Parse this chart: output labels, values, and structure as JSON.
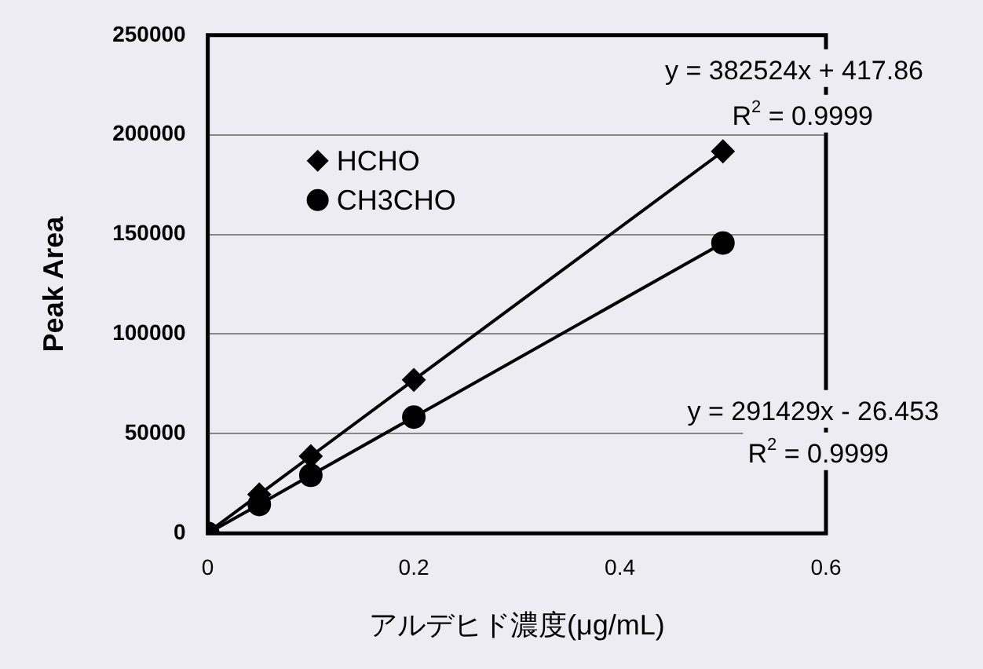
{
  "chart_data": {
    "type": "line",
    "xlabel": "アルデヒド濃度(μg/mL)",
    "ylabel": "Peak Area",
    "x": [
      0,
      0.05,
      0.1,
      0.2,
      0.5
    ],
    "series": [
      {
        "name": "HCHO",
        "color": "#000000",
        "marker": "diamond",
        "values": [
          400,
          19500,
          38700,
          77000,
          191700
        ]
      },
      {
        "name": "CH3CHO",
        "color": "#000000",
        "marker": "circle",
        "values": [
          0,
          14500,
          29100,
          58300,
          145700
        ]
      }
    ],
    "xlim": [
      0,
      0.6
    ],
    "xticks": [
      0,
      0.2,
      0.4,
      0.6
    ],
    "ylim": [
      0,
      250000
    ],
    "yticks": [
      0,
      50000,
      100000,
      150000,
      200000,
      250000
    ],
    "grid": "y",
    "legend": "top left",
    "line_style": "solid",
    "annotations": [
      "y = 382524x + 417.86",
      "R$^{2}$ = 0.9999",
      "y = 291429x - 26.453",
      "R$^{2}$ = 0.9999"
    ]
  }
}
